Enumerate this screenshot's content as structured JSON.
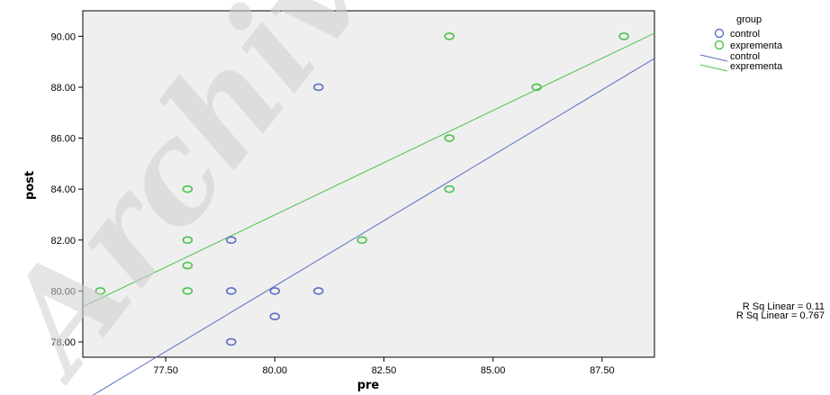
{
  "chart_data": {
    "type": "scatter",
    "xlabel": "pre",
    "ylabel": "post",
    "xlim": [
      75.6,
      88.7
    ],
    "ylim": [
      77.4,
      91.0
    ],
    "x_ticks": [
      77.5,
      80.0,
      82.5,
      85.0,
      87.5
    ],
    "x_tick_labels": [
      "77.50",
      "80.00",
      "82.50",
      "85.00",
      "87.50"
    ],
    "y_ticks": [
      78,
      80,
      82,
      84,
      86,
      88,
      90
    ],
    "y_tick_labels": [
      "78.00",
      "80.00",
      "82.00",
      "84.00",
      "86.00",
      "88.00",
      "90.00"
    ],
    "grid": false,
    "legend": {
      "title": "group",
      "placement": "right",
      "entries": [
        {
          "label": "control",
          "kind": "marker",
          "color": "#5b6fc4"
        },
        {
          "label": "exprementa",
          "kind": "marker",
          "color": "#4ec24e"
        },
        {
          "label": "control",
          "kind": "line",
          "color": "#5b6fc4"
        },
        {
          "label": "exprementa",
          "kind": "line",
          "color": "#4ec24e"
        }
      ]
    },
    "series": [
      {
        "name": "control",
        "color": "#5b6fc4",
        "points": [
          [
            81,
            88
          ],
          [
            79,
            82
          ],
          [
            79,
            80
          ],
          [
            80,
            80
          ],
          [
            81,
            80
          ],
          [
            80,
            79
          ],
          [
            79,
            78
          ]
        ],
        "fit_line": {
          "x": [
            75.6,
            88.7
          ],
          "y": [
            75.67,
            89.13
          ]
        }
      },
      {
        "name": "exprementa",
        "color": "#4ec24e",
        "points": [
          [
            84,
            90
          ],
          [
            88,
            90
          ],
          [
            86,
            88
          ],
          [
            84,
            86
          ],
          [
            78,
            84
          ],
          [
            84,
            84
          ],
          [
            78,
            82
          ],
          [
            82,
            82
          ],
          [
            78,
            81
          ],
          [
            76,
            80
          ],
          [
            78,
            80
          ]
        ],
        "fit_line": {
          "x": [
            75.6,
            88.7
          ],
          "y": [
            79.38,
            90.12
          ]
        }
      }
    ],
    "annotations": [
      "R Sq Linear = 0.11",
      "R Sq Linear = 0.767"
    ],
    "watermark": "Archive of SID",
    "plot_background": "#efefef"
  }
}
